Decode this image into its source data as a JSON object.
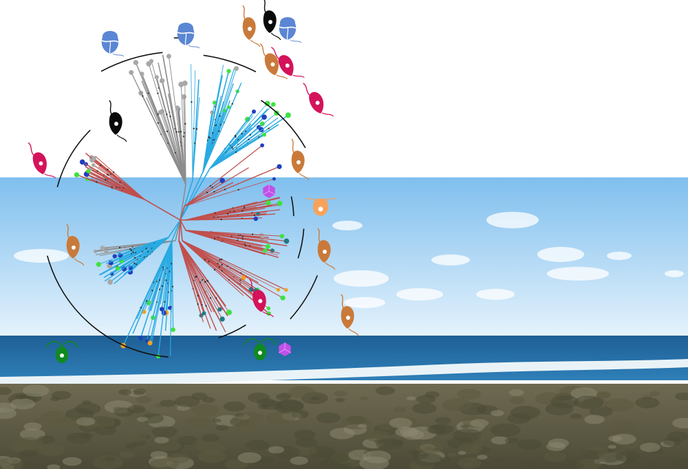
{
  "scene": {
    "colors": {
      "sky_top": "#7fbfee",
      "sky_bottom": "#e4f2fc",
      "sea": "#2f7fb8",
      "sea_deep": "#1e5f95",
      "surf": "#e9f3f7",
      "land": "#6f6a52",
      "land_dark": "#4c4a37"
    }
  },
  "tree": {
    "colors": {
      "clade_red": "#c0504d",
      "clade_blue": "#29aae2",
      "clade_gray": "#8c8c8c",
      "bracket": "#111111",
      "dot_green": "#3ee23e",
      "dot_blue": "#1f3fbf",
      "dot_gray": "#a8a8a8",
      "dot_teal": "#1f7a86",
      "dot_orange": "#f2a11c"
    }
  },
  "organisms": {
    "colors": {
      "dinoflagellate_blue": "#5b86d4",
      "flagellate_orange": "#c97a3a",
      "flagellate_magenta": "#d4135a",
      "flagellate_black": "#0a0a0a",
      "chlamydomonas_green": "#0f8a1e",
      "virus_purple": "#c050e8",
      "amoeba_peach": "#f7a25b"
    }
  }
}
